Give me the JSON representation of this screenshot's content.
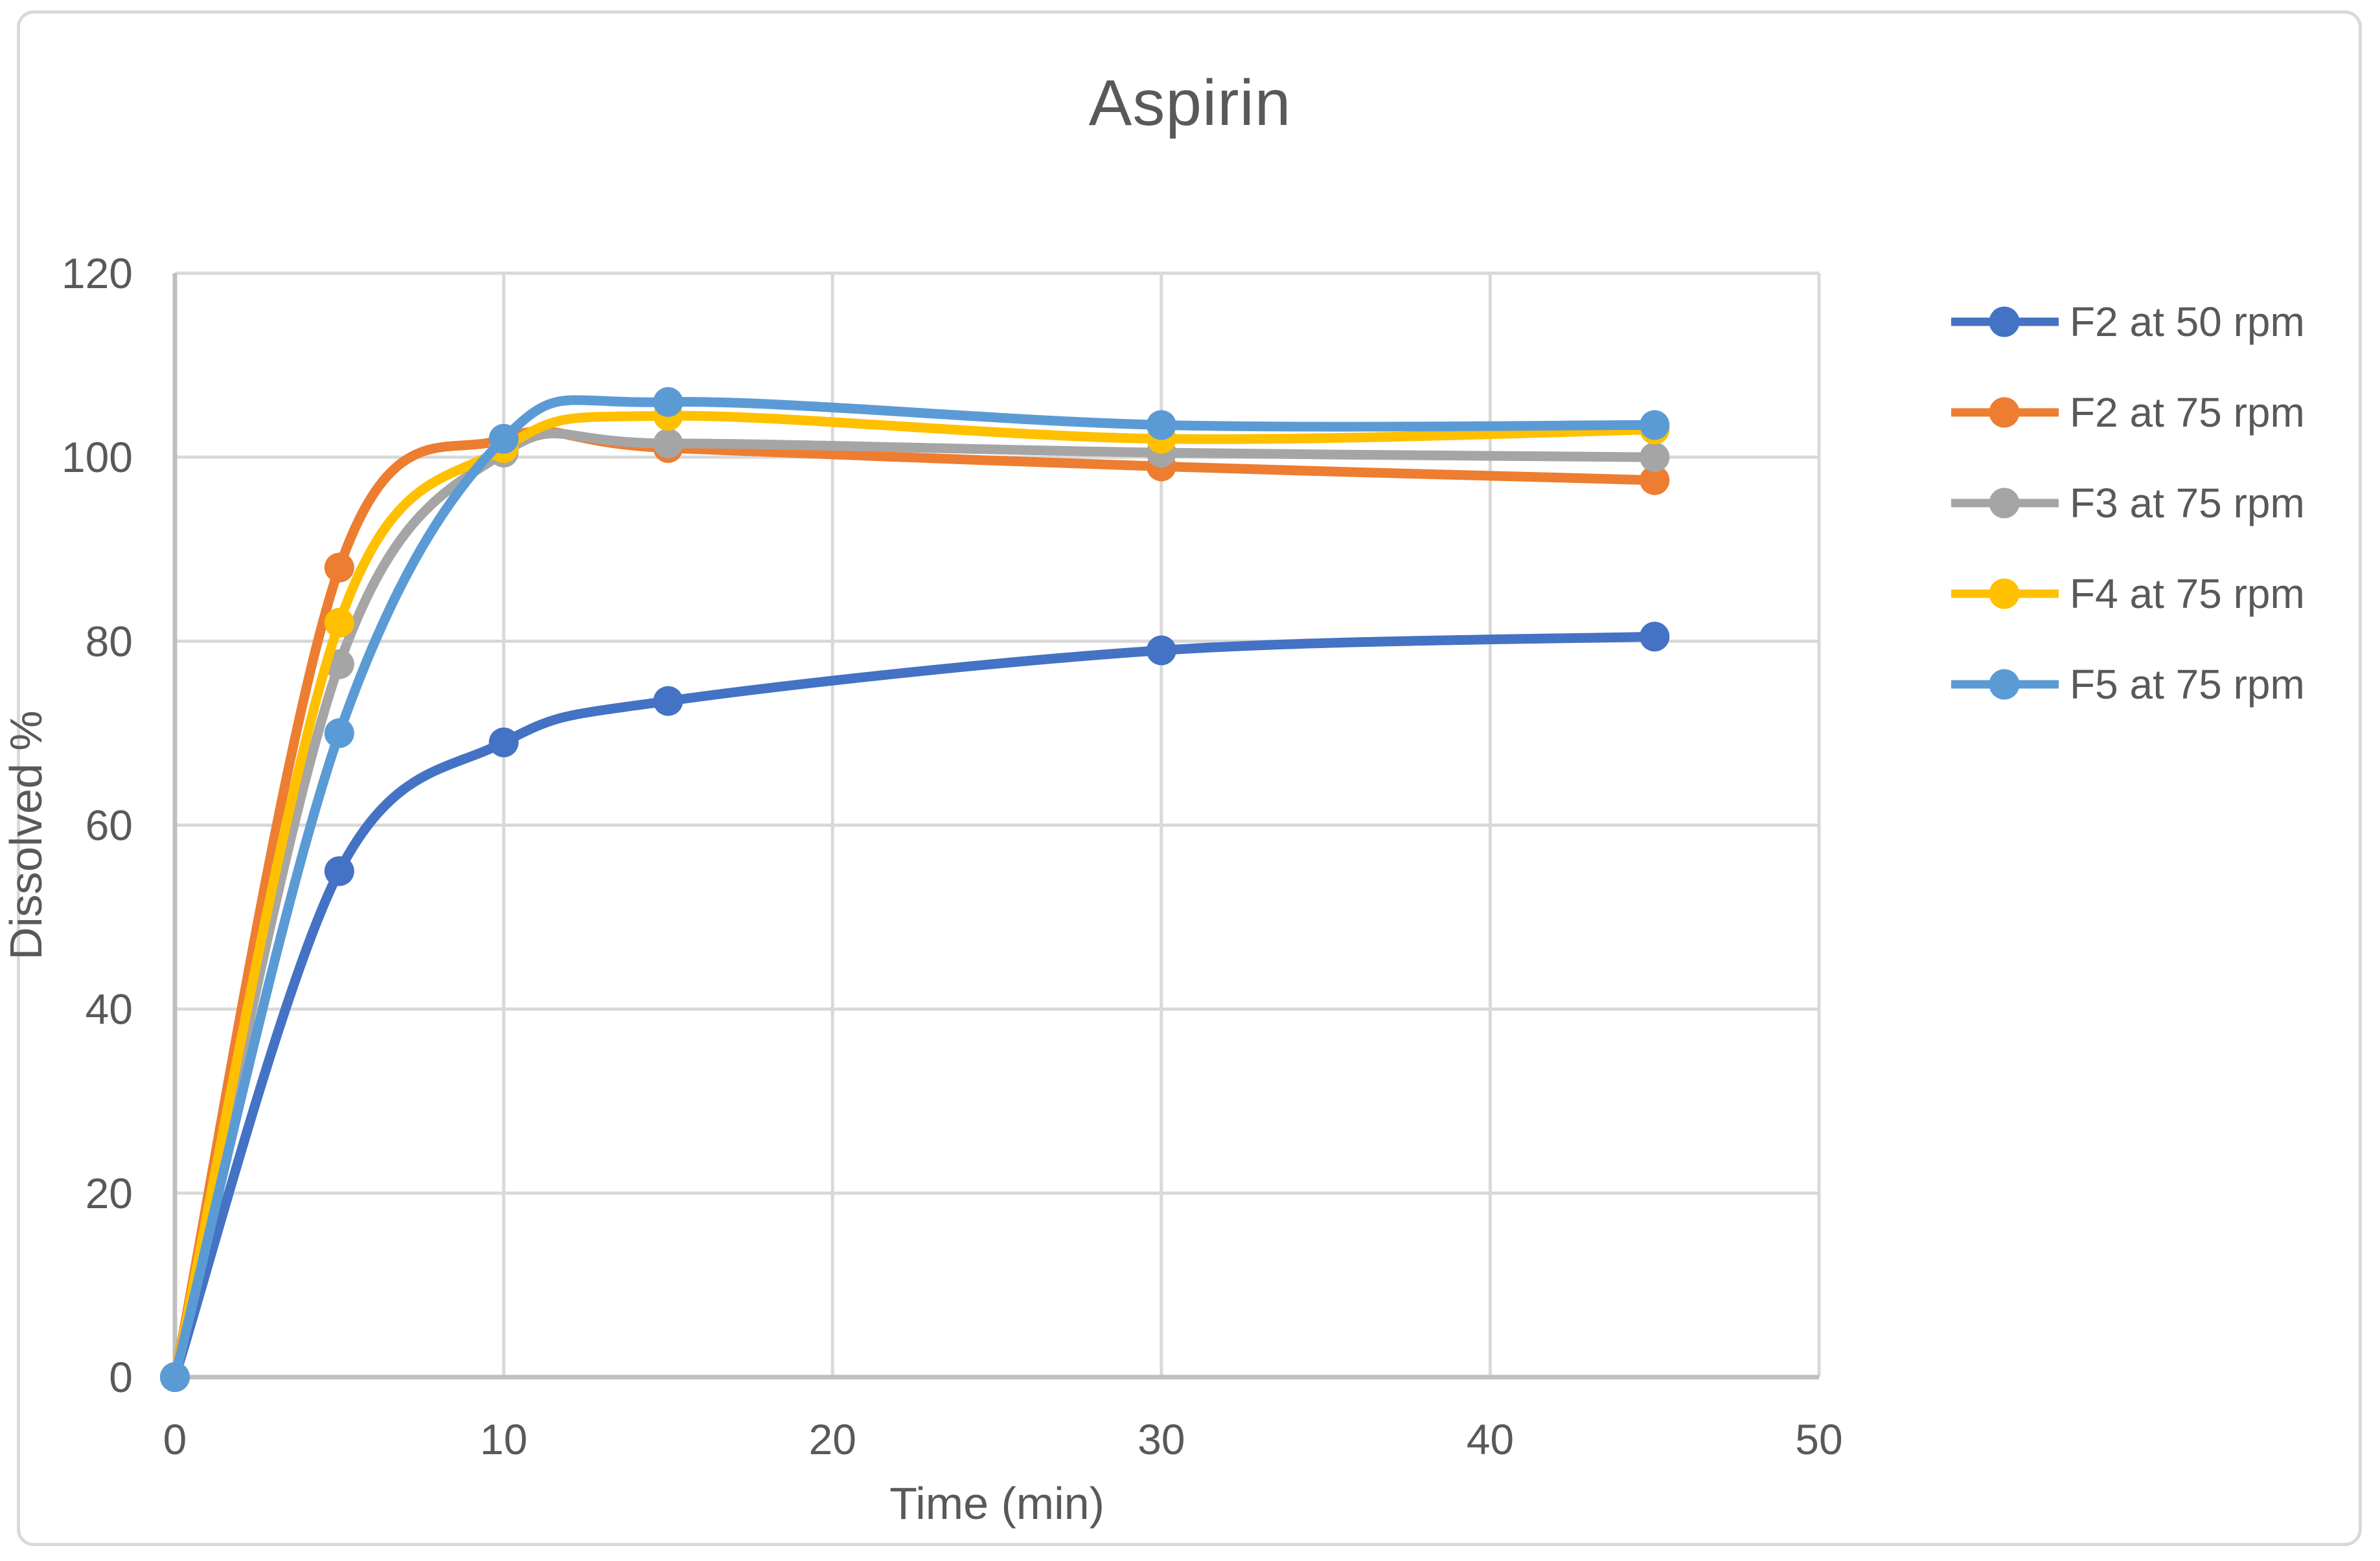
{
  "chart_data": {
    "type": "line",
    "title": "Aspirin",
    "xlabel": "Time (min)",
    "ylabel": "Dissolved %",
    "x": [
      0,
      5,
      10,
      15,
      30,
      45
    ],
    "series": [
      {
        "name": "F2 at 50 rpm",
        "color": "#4472C4",
        "values": [
          0,
          55,
          69,
          73.5,
          79,
          80.5
        ]
      },
      {
        "name": "F2 at 75 rpm",
        "color": "#ED7D31",
        "values": [
          0,
          88,
          102,
          101,
          99,
          97.5
        ]
      },
      {
        "name": "F3 at 75 rpm",
        "color": "#A5A5A5",
        "values": [
          0,
          77.5,
          100.5,
          101.5,
          100.5,
          100
        ]
      },
      {
        "name": "F4 at 75 rpm",
        "color": "#FFC000",
        "values": [
          0,
          82,
          101,
          104.5,
          102,
          103
        ]
      },
      {
        "name": "F5 at 75 rpm",
        "color": "#5B9BD5",
        "values": [
          0,
          70,
          102,
          106,
          103.5,
          103.5
        ]
      }
    ],
    "xlim": [
      0,
      50
    ],
    "ylim": [
      0,
      120
    ],
    "xticks": [
      0,
      10,
      20,
      30,
      40,
      50
    ],
    "yticks": [
      0,
      20,
      40,
      60,
      80,
      100,
      120
    ],
    "grid": true,
    "smooth": true,
    "marker": "circle",
    "legend_position": "right"
  },
  "style": {
    "text_color": "#595959",
    "grid_color": "#D9D9D9",
    "axis_color": "#BFBFBF",
    "chart_border_color": "#D9D9D9",
    "background": "#FFFFFF"
  }
}
